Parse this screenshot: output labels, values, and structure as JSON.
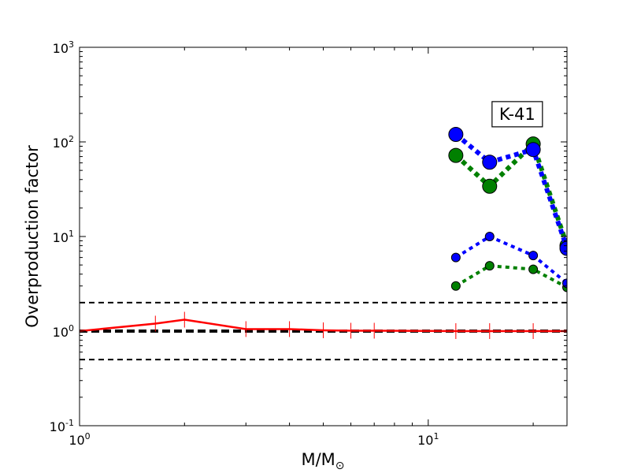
{
  "chart_data": {
    "type": "line",
    "title": "",
    "xlabel": "M/M",
    "xlabel_sub": "⊙",
    "ylabel": "Overproduction factor",
    "xscale": "log",
    "yscale": "log",
    "xlim": [
      1,
      25
    ],
    "ylim": [
      0.1,
      1000
    ],
    "grid": false,
    "legend": "none",
    "x_ticks": [
      {
        "value": 1,
        "base": "10",
        "exp": "0"
      },
      {
        "value": 10,
        "base": "10",
        "exp": "1"
      }
    ],
    "y_ticks": [
      {
        "value": 0.1,
        "base": "10",
        "exp": "-1"
      },
      {
        "value": 1,
        "base": "10",
        "exp": "0"
      },
      {
        "value": 10,
        "base": "10",
        "exp": "1"
      },
      {
        "value": 100,
        "base": "10",
        "exp": "2"
      },
      {
        "value": 1000,
        "base": "10",
        "exp": "3"
      }
    ],
    "annotation": {
      "text": "K-41",
      "x": 18,
      "y": 200
    },
    "reference_lines": [
      {
        "y": 2,
        "color": "#000000",
        "style": "dashed",
        "width": 2
      },
      {
        "y": 1,
        "color": "#000000",
        "style": "dashed",
        "width": 4
      },
      {
        "y": 0.5,
        "color": "#000000",
        "style": "dashed",
        "width": 2
      }
    ],
    "series": [
      {
        "color": "#ff0000",
        "style": "solid",
        "width": 2.5,
        "marker": "vline",
        "x": [
          1,
          1.65,
          2,
          3,
          4,
          5,
          6,
          7,
          12,
          15,
          20,
          25
        ],
        "y": [
          1.0,
          1.2,
          1.32,
          1.05,
          1.05,
          1.02,
          1.01,
          1.01,
          1.0,
          1.0,
          1.0,
          1.0
        ]
      },
      {
        "color": "#008000",
        "style": "dotted",
        "width": 6,
        "marker": "circle",
        "marker_size": 9,
        "x": [
          12,
          15,
          20,
          25
        ],
        "y": [
          72,
          34,
          95,
          8
        ]
      },
      {
        "color": "#0000ff",
        "style": "dotted",
        "width": 6,
        "marker": "circle",
        "marker_size": 9,
        "x": [
          12,
          15,
          20,
          25
        ],
        "y": [
          120,
          61,
          83,
          7.5
        ]
      },
      {
        "color": "#008000",
        "style": "dotted",
        "width": 4,
        "marker": "circle",
        "marker_size": 5.5,
        "x": [
          12,
          15,
          20,
          25
        ],
        "y": [
          3.0,
          4.9,
          4.5,
          2.9
        ]
      },
      {
        "color": "#0000ff",
        "style": "dotted",
        "width": 4,
        "marker": "circle",
        "marker_size": 5.5,
        "x": [
          12,
          15,
          20,
          25
        ],
        "y": [
          6.0,
          10.0,
          6.3,
          3.2
        ]
      }
    ]
  }
}
